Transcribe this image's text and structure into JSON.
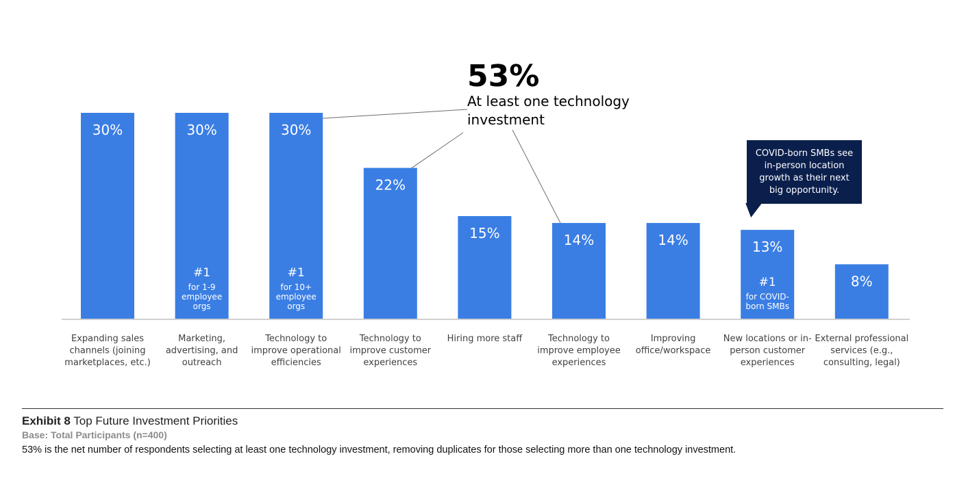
{
  "chart_data": {
    "type": "bar",
    "categories": [
      [
        "Expanding sales",
        "channels (joining",
        "marketplaces, etc.)"
      ],
      [
        "Marketing,",
        "advertising, and",
        "outreach"
      ],
      [
        "Technology to",
        "improve operational",
        "efficiencies"
      ],
      [
        "Technology to",
        "improve customer",
        "experiences"
      ],
      [
        "Hiring more staff"
      ],
      [
        "Technology to",
        "improve employee",
        "experiences"
      ],
      [
        "Improving",
        "office/workspace"
      ],
      [
        "New locations or in-",
        "person customer",
        "experiences"
      ],
      [
        "External professional",
        "services (e.g.,",
        "consulting, legal)"
      ]
    ],
    "values": [
      30,
      30,
      30,
      22,
      15,
      14,
      14,
      13,
      8
    ],
    "value_labels": [
      "30%",
      "30%",
      "30%",
      "22%",
      "15%",
      "14%",
      "14%",
      "13%",
      "8%"
    ],
    "ylim": [
      0,
      30
    ],
    "bar_color": "#3a7ee4",
    "bar_notes": [
      {
        "index": 1,
        "rank": "#1",
        "lines": [
          "for 1-9",
          "employee",
          "orgs"
        ]
      },
      {
        "index": 2,
        "rank": "#1",
        "lines": [
          "for 10+",
          "employee",
          "orgs"
        ]
      },
      {
        "index": 7,
        "rank": "#1",
        "lines": [
          "for COVID-",
          "born SMBs"
        ]
      }
    ],
    "highlight": {
      "value": "53%",
      "lines": [
        "At least one technology",
        "investment"
      ],
      "linked_bars": [
        2,
        3,
        5
      ]
    },
    "callout": {
      "bar_index": 7,
      "lines": [
        "COVID-born SMBs see",
        "in-person location",
        "growth as their next",
        "big opportunity."
      ],
      "color": "#0b1f4d"
    }
  },
  "caption": {
    "exhibit_number": "Exhibit 8",
    "title": "Top Future Investment Priorities",
    "base": "Base: Total Participants (n=400)",
    "note": "53% is the net number of respondents selecting at least one technology investment, removing duplicates for those selecting more than one technology investment."
  }
}
